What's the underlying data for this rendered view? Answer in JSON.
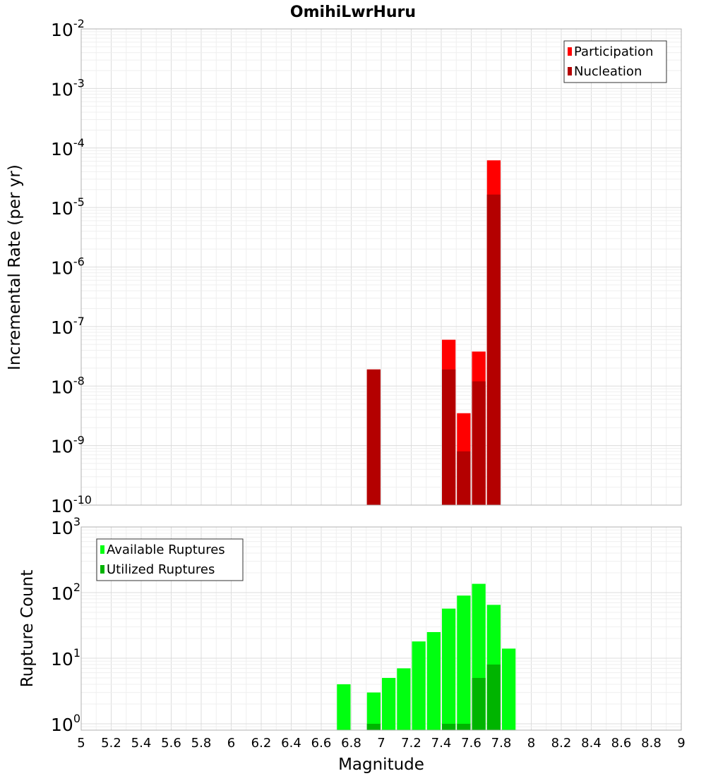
{
  "chart_data": [
    {
      "type": "bar",
      "title": "OmihiLwrHuru",
      "xlabel": "",
      "ylabel": "Incremental Rate (per yr)",
      "yscale": "log",
      "ylim": [
        1e-10,
        0.01
      ],
      "xlim": [
        5,
        9
      ],
      "bar_width": 0.1,
      "grid": true,
      "legend_position": "top-right",
      "y_ticks": [
        {
          "base": "10",
          "exp": "-2",
          "value": 0.01
        },
        {
          "base": "10",
          "exp": "-3",
          "value": 0.001
        },
        {
          "base": "10",
          "exp": "-4",
          "value": 0.0001
        },
        {
          "base": "10",
          "exp": "-5",
          "value": 1e-05
        },
        {
          "base": "10",
          "exp": "-6",
          "value": 1e-06
        },
        {
          "base": "10",
          "exp": "-7",
          "value": 1e-07
        },
        {
          "base": "10",
          "exp": "-8",
          "value": 1e-08
        },
        {
          "base": "10",
          "exp": "-9",
          "value": 1e-09
        },
        {
          "base": "10",
          "exp": "-10",
          "value": 1e-10
        }
      ],
      "series": [
        {
          "name": "Participation",
          "color": "#ff0000",
          "x": [
            6.95,
            7.45,
            7.55,
            7.65,
            7.75
          ],
          "values": [
            1.9e-08,
            6e-08,
            3.5e-09,
            3.8e-08,
            6.2e-05
          ]
        },
        {
          "name": "Nucleation",
          "color": "#b40000",
          "x": [
            6.95,
            7.45,
            7.55,
            7.65,
            7.75
          ],
          "values": [
            1.9e-08,
            1.9e-08,
            8e-10,
            1.2e-08,
            1.65e-05
          ]
        }
      ]
    },
    {
      "type": "bar",
      "title": "",
      "xlabel": "Magnitude",
      "ylabel": "Rupture Count",
      "yscale": "log",
      "ylim": [
        0.8,
        1000
      ],
      "xlim": [
        5,
        9
      ],
      "bar_width": 0.1,
      "grid": true,
      "legend_position": "top-left",
      "x_ticks": [
        "5",
        "5.2",
        "5.4",
        "5.6",
        "5.8",
        "6",
        "6.2",
        "6.4",
        "6.6",
        "6.8",
        "7",
        "7.2",
        "7.4",
        "7.6",
        "7.8",
        "8",
        "8.2",
        "8.4",
        "8.6",
        "8.8",
        "9"
      ],
      "y_ticks": [
        {
          "base": "10",
          "exp": "3",
          "value": 1000
        },
        {
          "base": "10",
          "exp": "2",
          "value": 100
        },
        {
          "base": "10",
          "exp": "1",
          "value": 10
        },
        {
          "base": "10",
          "exp": "0",
          "value": 1
        }
      ],
      "series": [
        {
          "name": "Available Ruptures",
          "color": "#00ff10",
          "x": [
            6.75,
            6.95,
            7.05,
            7.15,
            7.25,
            7.35,
            7.45,
            7.55,
            7.65,
            7.75,
            7.85
          ],
          "values": [
            4,
            3,
            5,
            7,
            18,
            25,
            57,
            90,
            136,
            65,
            14
          ]
        },
        {
          "name": "Utilized Ruptures",
          "color": "#00b400",
          "x": [
            6.95,
            7.45,
            7.55,
            7.65,
            7.75
          ],
          "values": [
            1,
            1,
            1,
            5,
            8
          ]
        }
      ]
    }
  ]
}
